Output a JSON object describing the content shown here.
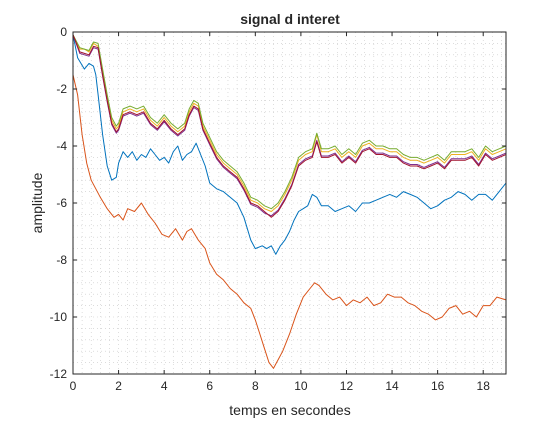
{
  "chart_data": {
    "type": "line",
    "title": "signal d interet",
    "xlabel": "temps en secondes",
    "ylabel": "amplitude",
    "xlim": [
      0,
      19
    ],
    "ylim": [
      -12,
      0
    ],
    "xticks": [
      0,
      2,
      4,
      6,
      8,
      10,
      12,
      14,
      16,
      18
    ],
    "yticks": [
      -12,
      -10,
      -8,
      -6,
      -4,
      -2,
      0
    ],
    "grid": "minor-dotted",
    "legend": "none",
    "series": [
      {
        "color": "#0072bd",
        "x": [
          0,
          0.2,
          0.5,
          0.7,
          0.9,
          1.0,
          1.1,
          1.3,
          1.5,
          1.7,
          1.9,
          2.0,
          2.2,
          2.4,
          2.6,
          2.8,
          3.0,
          3.2,
          3.4,
          3.6,
          3.8,
          4.0,
          4.2,
          4.4,
          4.6,
          4.8,
          5.0,
          5.2,
          5.4,
          5.6,
          5.8,
          6.0,
          6.3,
          6.6,
          6.9,
          7.2,
          7.5,
          7.8,
          8.0,
          8.3,
          8.5,
          8.7,
          8.9,
          9.1,
          9.3,
          9.5,
          9.7,
          9.9,
          10.1,
          10.3,
          10.5,
          10.7,
          10.9,
          11.2,
          11.5,
          11.8,
          12.1,
          12.4,
          12.7,
          13.0,
          13.3,
          13.6,
          13.9,
          14.2,
          14.5,
          14.8,
          15.1,
          15.4,
          15.7,
          16.0,
          16.3,
          16.6,
          16.9,
          17.2,
          17.5,
          17.8,
          18.1,
          18.4,
          18.7,
          19.0
        ],
        "values": [
          -0.1,
          -0.9,
          -1.3,
          -1.1,
          -1.2,
          -1.5,
          -2.2,
          -3.6,
          -4.7,
          -5.2,
          -5.1,
          -4.6,
          -4.2,
          -4.4,
          -4.2,
          -4.5,
          -4.3,
          -4.4,
          -4.1,
          -4.3,
          -4.5,
          -4.4,
          -4.6,
          -4.2,
          -4.0,
          -4.5,
          -4.3,
          -4.2,
          -3.9,
          -4.3,
          -4.7,
          -5.3,
          -5.5,
          -5.6,
          -5.8,
          -6.0,
          -6.5,
          -7.3,
          -7.6,
          -7.5,
          -7.6,
          -7.5,
          -7.8,
          -7.5,
          -7.3,
          -7.0,
          -6.6,
          -6.3,
          -6.2,
          -6.1,
          -5.7,
          -5.8,
          -6.1,
          -6.1,
          -6.3,
          -6.2,
          -6.1,
          -6.3,
          -6.0,
          -6.0,
          -5.9,
          -5.8,
          -5.7,
          -5.8,
          -5.6,
          -5.7,
          -5.8,
          -6.0,
          -6.2,
          -6.1,
          -5.9,
          -5.8,
          -5.6,
          -5.7,
          -5.9,
          -5.7,
          -5.7,
          -5.9,
          -5.6,
          -5.3
        ]
      },
      {
        "color": "#d95319",
        "x": [
          0,
          0.2,
          0.4,
          0.6,
          0.8,
          1.0,
          1.2,
          1.5,
          1.8,
          2.0,
          2.2,
          2.4,
          2.7,
          3.0,
          3.3,
          3.6,
          3.9,
          4.2,
          4.5,
          4.8,
          5.0,
          5.2,
          5.5,
          5.8,
          6.0,
          6.3,
          6.6,
          6.9,
          7.2,
          7.5,
          7.8,
          8.0,
          8.2,
          8.4,
          8.6,
          8.8,
          9.0,
          9.2,
          9.5,
          9.8,
          10.1,
          10.4,
          10.6,
          10.8,
          11.1,
          11.4,
          11.7,
          12.0,
          12.3,
          12.6,
          12.9,
          13.2,
          13.5,
          13.8,
          14.1,
          14.4,
          14.7,
          15.0,
          15.3,
          15.6,
          15.9,
          16.2,
          16.5,
          16.8,
          17.1,
          17.4,
          17.7,
          18.0,
          18.3,
          18.6,
          19.0
        ],
        "values": [
          -1.5,
          -2.2,
          -3.6,
          -4.6,
          -5.2,
          -5.5,
          -5.8,
          -6.2,
          -6.5,
          -6.4,
          -6.6,
          -6.2,
          -6.3,
          -6.0,
          -6.4,
          -6.7,
          -7.1,
          -7.2,
          -6.9,
          -7.3,
          -7.0,
          -6.9,
          -7.3,
          -7.6,
          -8.1,
          -8.5,
          -8.7,
          -9.0,
          -9.2,
          -9.5,
          -9.7,
          -10.1,
          -10.6,
          -11.1,
          -11.6,
          -11.8,
          -11.5,
          -11.2,
          -10.6,
          -9.9,
          -9.3,
          -9.0,
          -8.8,
          -8.9,
          -9.2,
          -9.4,
          -9.3,
          -9.6,
          -9.4,
          -9.5,
          -9.3,
          -9.6,
          -9.5,
          -9.2,
          -9.3,
          -9.3,
          -9.5,
          -9.6,
          -9.8,
          -9.9,
          -10.1,
          -10.0,
          -9.7,
          -9.6,
          -9.9,
          -9.8,
          -10.0,
          -9.6,
          -9.6,
          -9.3,
          -9.4
        ]
      },
      {
        "color": "#edb120",
        "x": [
          0,
          0.3,
          0.5,
          0.7,
          0.9,
          1.1,
          1.3,
          1.5,
          1.7,
          1.9,
          2.0,
          2.2,
          2.5,
          2.8,
          3.1,
          3.4,
          3.7,
          4.0,
          4.3,
          4.6,
          4.9,
          5.1,
          5.3,
          5.5,
          5.7,
          6.0,
          6.3,
          6.6,
          6.9,
          7.2,
          7.5,
          7.8,
          8.1,
          8.4,
          8.7,
          9.0,
          9.3,
          9.6,
          9.9,
          10.2,
          10.5,
          10.7,
          10.9,
          11.2,
          11.5,
          11.8,
          12.1,
          12.4,
          12.7,
          13.0,
          13.3,
          13.6,
          13.9,
          14.2,
          14.5,
          14.8,
          15.1,
          15.4,
          15.7,
          16.0,
          16.3,
          16.6,
          16.9,
          17.2,
          17.5,
          17.8,
          18.1,
          18.4,
          18.7,
          19.0
        ],
        "values": [
          -0.1,
          -0.6,
          -0.6,
          -0.7,
          -0.4,
          -0.5,
          -1.4,
          -2.3,
          -3.1,
          -3.4,
          -3.3,
          -2.8,
          -2.7,
          -2.8,
          -2.7,
          -3.1,
          -3.3,
          -3.0,
          -3.3,
          -3.5,
          -3.3,
          -2.8,
          -2.5,
          -2.6,
          -3.3,
          -3.8,
          -4.3,
          -4.6,
          -4.8,
          -5.0,
          -5.4,
          -5.9,
          -6.0,
          -6.2,
          -6.3,
          -6.1,
          -5.7,
          -5.2,
          -4.5,
          -4.3,
          -4.2,
          -3.6,
          -4.2,
          -4.2,
          -4.1,
          -4.4,
          -4.2,
          -4.4,
          -4.0,
          -3.9,
          -4.1,
          -4.1,
          -4.2,
          -4.2,
          -4.4,
          -4.5,
          -4.5,
          -4.6,
          -4.5,
          -4.4,
          -4.6,
          -4.3,
          -4.3,
          -4.3,
          -4.2,
          -4.5,
          -4.1,
          -4.3,
          -4.2,
          -4.1
        ]
      },
      {
        "color": "#7e2f8e",
        "x": [
          0,
          0.3,
          0.5,
          0.7,
          0.9,
          1.1,
          1.3,
          1.5,
          1.7,
          1.9,
          2.0,
          2.2,
          2.5,
          2.8,
          3.1,
          3.4,
          3.7,
          4.0,
          4.3,
          4.6,
          4.9,
          5.1,
          5.3,
          5.5,
          5.7,
          6.0,
          6.3,
          6.6,
          6.9,
          7.2,
          7.5,
          7.8,
          8.1,
          8.4,
          8.7,
          9.0,
          9.3,
          9.6,
          9.9,
          10.2,
          10.5,
          10.7,
          10.9,
          11.2,
          11.5,
          11.8,
          12.1,
          12.4,
          12.7,
          13.0,
          13.3,
          13.6,
          13.9,
          14.2,
          14.5,
          14.8,
          15.1,
          15.4,
          15.7,
          16.0,
          16.3,
          16.6,
          16.9,
          17.2,
          17.5,
          17.8,
          18.1,
          18.4,
          18.7,
          19.0
        ],
        "values": [
          -0.1,
          -0.75,
          -0.8,
          -0.85,
          -0.55,
          -0.6,
          -1.55,
          -2.45,
          -3.25,
          -3.55,
          -3.45,
          -2.95,
          -2.85,
          -2.95,
          -2.85,
          -3.25,
          -3.45,
          -3.15,
          -3.45,
          -3.65,
          -3.45,
          -2.95,
          -2.65,
          -2.75,
          -3.45,
          -3.95,
          -4.45,
          -4.75,
          -4.95,
          -5.15,
          -5.55,
          -6.05,
          -6.15,
          -6.35,
          -6.45,
          -6.25,
          -5.85,
          -5.35,
          -4.65,
          -4.45,
          -4.35,
          -3.8,
          -4.35,
          -4.35,
          -4.25,
          -4.55,
          -4.35,
          -4.55,
          -4.15,
          -4.05,
          -4.25,
          -4.25,
          -4.35,
          -4.35,
          -4.55,
          -4.65,
          -4.65,
          -4.75,
          -4.65,
          -4.55,
          -4.75,
          -4.45,
          -4.45,
          -4.45,
          -4.35,
          -4.65,
          -4.25,
          -4.45,
          -4.35,
          -4.25
        ]
      },
      {
        "color": "#77ac30",
        "x": [
          0,
          0.3,
          0.5,
          0.7,
          0.9,
          1.1,
          1.3,
          1.5,
          1.7,
          1.9,
          2.0,
          2.2,
          2.5,
          2.8,
          3.1,
          3.4,
          3.7,
          4.0,
          4.3,
          4.6,
          4.9,
          5.1,
          5.3,
          5.5,
          5.7,
          6.0,
          6.3,
          6.6,
          6.9,
          7.2,
          7.5,
          7.8,
          8.1,
          8.4,
          8.7,
          9.0,
          9.3,
          9.6,
          9.9,
          10.2,
          10.5,
          10.7,
          10.9,
          11.2,
          11.5,
          11.8,
          12.1,
          12.4,
          12.7,
          13.0,
          13.3,
          13.6,
          13.9,
          14.2,
          14.5,
          14.8,
          15.1,
          15.4,
          15.7,
          16.0,
          16.3,
          16.6,
          16.9,
          17.2,
          17.5,
          17.8,
          18.1,
          18.4,
          18.7,
          19.0
        ],
        "values": [
          -0.1,
          -0.55,
          -0.6,
          -0.65,
          -0.35,
          -0.4,
          -1.3,
          -2.2,
          -3.0,
          -3.3,
          -3.2,
          -2.7,
          -2.6,
          -2.7,
          -2.6,
          -3.0,
          -3.2,
          -2.9,
          -3.2,
          -3.4,
          -3.2,
          -2.7,
          -2.4,
          -2.5,
          -3.2,
          -3.7,
          -4.2,
          -4.5,
          -4.7,
          -4.9,
          -5.3,
          -5.8,
          -5.9,
          -6.1,
          -6.2,
          -6.0,
          -5.6,
          -5.1,
          -4.4,
          -4.2,
          -4.1,
          -3.55,
          -4.1,
          -4.1,
          -4.0,
          -4.3,
          -4.1,
          -4.3,
          -3.9,
          -3.8,
          -4.0,
          -4.0,
          -4.1,
          -4.1,
          -4.3,
          -4.4,
          -4.4,
          -4.5,
          -4.4,
          -4.3,
          -4.5,
          -4.2,
          -4.2,
          -4.2,
          -4.1,
          -4.4,
          -4.0,
          -4.2,
          -4.1,
          -4.0
        ]
      },
      {
        "color": "#a2142f",
        "x": [
          0,
          0.3,
          0.5,
          0.7,
          0.9,
          1.1,
          1.3,
          1.5,
          1.7,
          1.9,
          2.0,
          2.2,
          2.5,
          2.8,
          3.1,
          3.4,
          3.7,
          4.0,
          4.3,
          4.6,
          4.9,
          5.1,
          5.3,
          5.5,
          5.7,
          6.0,
          6.3,
          6.6,
          6.9,
          7.2,
          7.5,
          7.8,
          8.1,
          8.4,
          8.7,
          9.0,
          9.3,
          9.6,
          9.9,
          10.2,
          10.5,
          10.7,
          10.9,
          11.2,
          11.5,
          11.8,
          12.1,
          12.4,
          12.7,
          13.0,
          13.3,
          13.6,
          13.9,
          14.2,
          14.5,
          14.8,
          15.1,
          15.4,
          15.7,
          16.0,
          16.3,
          16.6,
          16.9,
          17.2,
          17.5,
          17.8,
          18.1,
          18.4,
          18.7,
          19.0
        ],
        "values": [
          -0.1,
          -0.7,
          -0.75,
          -0.8,
          -0.5,
          -0.55,
          -1.5,
          -2.4,
          -3.2,
          -3.5,
          -3.4,
          -2.9,
          -2.8,
          -2.9,
          -2.8,
          -3.2,
          -3.4,
          -3.1,
          -3.4,
          -3.6,
          -3.4,
          -2.9,
          -2.6,
          -2.7,
          -3.4,
          -3.9,
          -4.4,
          -4.7,
          -4.9,
          -5.1,
          -5.5,
          -6.0,
          -6.1,
          -6.3,
          -6.5,
          -6.3,
          -5.9,
          -5.4,
          -4.7,
          -4.5,
          -4.4,
          -3.85,
          -4.4,
          -4.4,
          -4.3,
          -4.6,
          -4.4,
          -4.6,
          -4.2,
          -4.1,
          -4.3,
          -4.3,
          -4.4,
          -4.4,
          -4.6,
          -4.7,
          -4.7,
          -4.8,
          -4.7,
          -4.6,
          -4.8,
          -4.5,
          -4.5,
          -4.5,
          -4.4,
          -4.7,
          -4.3,
          -4.5,
          -4.4,
          -4.3
        ]
      }
    ]
  }
}
